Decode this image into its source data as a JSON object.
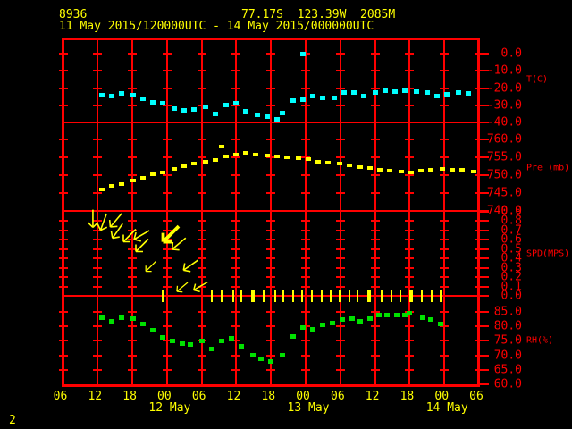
{
  "header": {
    "station_id": "8936",
    "location": "77.17S  123.39W  2085M",
    "time_range": "11 May 2015/120000UTC - 14 May 2015/000000UTC"
  },
  "footer": {
    "page_number": "2"
  },
  "colors": {
    "background": "#000000",
    "grid_red": "#ff0000",
    "temperature": "#00ffff",
    "pressure": "#ffff00",
    "wind": "#ffff00",
    "humidity": "#00e100",
    "header_text": "#ffff00"
  },
  "x_axis": {
    "time_unit": "hours since 2015-05-11 00:00 UTC",
    "hour_tick_hours": [
      6,
      12,
      18,
      24,
      30,
      36,
      42,
      48,
      54,
      60,
      66,
      72,
      78
    ],
    "hour_labels": [
      "06",
      "12",
      "18",
      "00",
      "06",
      "12",
      "18",
      "00",
      "06",
      "12",
      "18",
      "00",
      "06"
    ],
    "date_labels": [
      {
        "t": 24,
        "label": "12 May"
      },
      {
        "t": 48,
        "label": "13 May"
      },
      {
        "t": 72,
        "label": "14 May"
      }
    ]
  },
  "chart_data": {
    "type": "line",
    "time_unit": "hours since 2015-05-11 00:00 UTC",
    "panels": [
      {
        "name": "temperature",
        "unit_label": "T(C)",
        "tick_values": [
          0,
          -10,
          -20,
          -30,
          -40
        ],
        "tick_labels": [
          "0.0",
          "-10.0",
          "-20.0",
          "-30.0",
          "-40.0"
        ],
        "points": [
          [
            12.7,
            -23.9
          ],
          [
            14.5,
            -24.4
          ],
          [
            16.2,
            -22.9
          ],
          [
            18.1,
            -23.9
          ],
          [
            19.8,
            -26.0
          ],
          [
            21.6,
            -28.1
          ],
          [
            23.3,
            -28.6
          ],
          [
            25.2,
            -31.7
          ],
          [
            27.0,
            -32.7
          ],
          [
            28.7,
            -32.2
          ],
          [
            30.6,
            -30.6
          ],
          [
            32.3,
            -34.8
          ],
          [
            34.2,
            -29.6
          ],
          [
            35.9,
            -28.6
          ],
          [
            37.7,
            -33.2
          ],
          [
            39.6,
            -35.3
          ],
          [
            41.3,
            -36.4
          ],
          [
            43.1,
            -37.9
          ],
          [
            43.9,
            -34.3
          ],
          [
            45.8,
            -27.0
          ],
          [
            47.5,
            0.0
          ],
          [
            47.5,
            -26.5
          ],
          [
            49.3,
            -24.4
          ],
          [
            51.0,
            -25.5
          ],
          [
            52.9,
            -25.5
          ],
          [
            54.6,
            -22.3
          ],
          [
            56.4,
            -22.3
          ],
          [
            58.1,
            -24.4
          ],
          [
            60.0,
            -22.3
          ],
          [
            61.7,
            -21.3
          ],
          [
            63.5,
            -21.8
          ],
          [
            65.2,
            -21.3
          ],
          [
            67.1,
            -21.8
          ],
          [
            69.0,
            -22.3
          ],
          [
            70.7,
            -24.4
          ],
          [
            72.5,
            -23.4
          ],
          [
            74.4,
            -22.3
          ],
          [
            76.1,
            -22.9
          ]
        ]
      },
      {
        "name": "pressure",
        "unit_label": "Pre (mb)",
        "tick_values": [
          760,
          755,
          750,
          745,
          740
        ],
        "tick_labels": [
          "760.0",
          "755.0",
          "750.0",
          "745.0",
          "740.0"
        ],
        "points": [
          [
            12.7,
            746.0
          ],
          [
            14.5,
            747.0
          ],
          [
            16.2,
            747.5
          ],
          [
            18.1,
            748.5
          ],
          [
            19.8,
            749.3
          ],
          [
            21.6,
            750.3
          ],
          [
            23.3,
            750.8
          ],
          [
            25.2,
            751.8
          ],
          [
            27.0,
            752.5
          ],
          [
            28.7,
            753.3
          ],
          [
            30.6,
            753.8
          ],
          [
            32.3,
            754.3
          ],
          [
            33.5,
            758.0
          ],
          [
            34.2,
            755.3
          ],
          [
            35.9,
            755.8
          ],
          [
            37.7,
            756.3
          ],
          [
            39.4,
            755.8
          ],
          [
            41.3,
            755.5
          ],
          [
            43.1,
            755.3
          ],
          [
            44.8,
            755.0
          ],
          [
            46.7,
            754.8
          ],
          [
            48.4,
            754.5
          ],
          [
            50.2,
            753.8
          ],
          [
            51.9,
            753.5
          ],
          [
            53.8,
            753.3
          ],
          [
            55.5,
            752.8
          ],
          [
            57.4,
            752.3
          ],
          [
            59.1,
            752.0
          ],
          [
            60.9,
            751.5
          ],
          [
            62.6,
            751.3
          ],
          [
            64.5,
            751.0
          ],
          [
            66.2,
            750.8
          ],
          [
            68.0,
            751.3
          ],
          [
            69.7,
            751.5
          ],
          [
            71.6,
            751.8
          ],
          [
            73.3,
            751.5
          ],
          [
            75.1,
            751.5
          ],
          [
            77.0,
            751.0
          ]
        ]
      },
      {
        "name": "wind_speed",
        "unit_label": "SPD(MPS)",
        "tick_values": [
          0.9,
          0.8,
          0.7,
          0.6,
          0.5,
          0.4,
          0.3,
          0.2,
          0.1,
          0.0
        ],
        "tick_labels": [
          "0.9",
          "0.8",
          "0.7",
          "0.6",
          "0.5",
          "0.4",
          "0.3",
          "0.2",
          "0.1",
          "0.0"
        ],
        "arrows": [
          {
            "t": 11.3,
            "spd": 0.8,
            "rot": -45,
            "scale": 1,
            "bold": false
          },
          {
            "t": 13.1,
            "spd": 0.77,
            "rot": -25,
            "scale": 1,
            "bold": false
          },
          {
            "t": 15.0,
            "spd": 0.78,
            "rot": -5,
            "scale": 1,
            "bold": false
          },
          {
            "t": 15.4,
            "spd": 0.67,
            "rot": -10,
            "scale": 1,
            "bold": false
          },
          {
            "t": 17.4,
            "spd": 0.62,
            "rot": 0,
            "scale": 1,
            "bold": false
          },
          {
            "t": 19.4,
            "spd": 0.63,
            "rot": 15,
            "scale": 1,
            "bold": false
          },
          {
            "t": 19.6,
            "spd": 0.52,
            "rot": 0,
            "scale": 1,
            "bold": false
          },
          {
            "t": 21.1,
            "spd": 0.3,
            "rot": 0,
            "scale": 0.8,
            "bold": false
          },
          {
            "t": 24.5,
            "spd": 0.63,
            "rot": 0,
            "scale": 1.25,
            "bold": true
          },
          {
            "t": 25.9,
            "spd": 0.54,
            "rot": 5,
            "scale": 1,
            "bold": false
          },
          {
            "t": 27.9,
            "spd": 0.31,
            "rot": 10,
            "scale": 1,
            "bold": false
          },
          {
            "t": 26.5,
            "spd": 0.08,
            "rot": 5,
            "scale": 0.8,
            "bold": false
          },
          {
            "t": 29.6,
            "spd": 0.09,
            "rot": 15,
            "scale": 0.9,
            "bold": false
          }
        ],
        "calm_staffs": [
          {
            "t": 23.3,
            "w": 2
          },
          {
            "t": 31.8,
            "w": 2
          },
          {
            "t": 33.5,
            "w": 2
          },
          {
            "t": 35.4,
            "w": 2
          },
          {
            "t": 36.9,
            "w": 2
          },
          {
            "t": 38.9,
            "w": 4
          },
          {
            "t": 40.8,
            "w": 2
          },
          {
            "t": 42.7,
            "w": 2
          },
          {
            "t": 44.2,
            "w": 2
          },
          {
            "t": 45.9,
            "w": 2
          },
          {
            "t": 47.3,
            "w": 2
          },
          {
            "t": 49.0,
            "w": 2
          },
          {
            "t": 50.8,
            "w": 2
          },
          {
            "t": 52.4,
            "w": 2
          },
          {
            "t": 53.9,
            "w": 2
          },
          {
            "t": 55.5,
            "w": 2
          },
          {
            "t": 57.0,
            "w": 2
          },
          {
            "t": 59.0,
            "w": 4
          },
          {
            "t": 61.2,
            "w": 2
          },
          {
            "t": 62.9,
            "w": 2
          },
          {
            "t": 64.4,
            "w": 2
          },
          {
            "t": 66.3,
            "w": 4
          },
          {
            "t": 68.1,
            "w": 2
          },
          {
            "t": 69.8,
            "w": 2
          },
          {
            "t": 71.4,
            "w": 2
          }
        ]
      },
      {
        "name": "relative_humidity",
        "unit_label": "RH(%)",
        "tick_values": [
          85,
          80,
          75,
          70,
          65,
          60
        ],
        "tick_labels": [
          "85.0",
          "80.0",
          "75.0",
          "70.0",
          "65.0",
          "60.0"
        ],
        "points": [
          [
            12.7,
            83.1
          ],
          [
            14.5,
            81.9
          ],
          [
            16.2,
            83.1
          ],
          [
            18.1,
            82.8
          ],
          [
            19.9,
            81.0
          ],
          [
            21.6,
            78.8
          ],
          [
            23.3,
            76.4
          ],
          [
            25.0,
            75.1
          ],
          [
            26.6,
            74.2
          ],
          [
            28.1,
            73.9
          ],
          [
            30.0,
            75.1
          ],
          [
            31.8,
            72.3
          ],
          [
            33.5,
            75.1
          ],
          [
            35.1,
            76.0
          ],
          [
            36.9,
            73.3
          ],
          [
            38.8,
            70.2
          ],
          [
            40.3,
            68.9
          ],
          [
            42.0,
            68.0
          ],
          [
            43.9,
            70.2
          ],
          [
            45.8,
            76.7
          ],
          [
            47.5,
            79.8
          ],
          [
            49.3,
            79.1
          ],
          [
            50.9,
            80.7
          ],
          [
            52.7,
            81.3
          ],
          [
            54.3,
            82.5
          ],
          [
            56.0,
            82.8
          ],
          [
            57.5,
            81.9
          ],
          [
            59.1,
            82.8
          ],
          [
            60.6,
            84.1
          ],
          [
            62.1,
            84.1
          ],
          [
            63.7,
            84.1
          ],
          [
            65.2,
            84.1
          ],
          [
            66.0,
            84.7
          ],
          [
            68.2,
            83.1
          ],
          [
            69.7,
            82.5
          ],
          [
            71.4,
            81.0
          ]
        ]
      }
    ]
  }
}
